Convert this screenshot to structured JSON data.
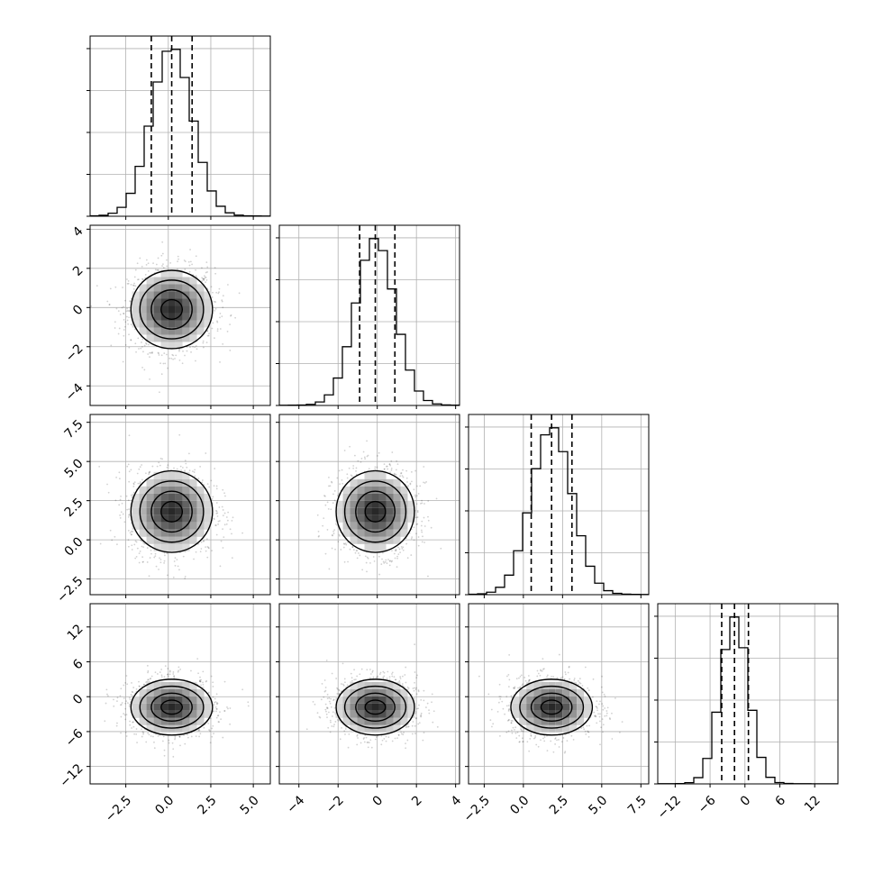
{
  "chart_data": {
    "type": "corner",
    "grid": true,
    "parameters": [
      {
        "range": [
          -4.6,
          6.0
        ],
        "ticks": [
          -2.5,
          0.0,
          2.5,
          5.0
        ],
        "tick_labels": [
          "−2.5",
          "0.0",
          "2.5",
          "5.0"
        ],
        "mean": 0.2,
        "sd": 1.2,
        "quantiles": [
          -1.0,
          0.2,
          1.4
        ]
      },
      {
        "range": [
          -5.0,
          4.2
        ],
        "ticks": [
          -4,
          -2,
          0,
          2,
          4
        ],
        "tick_labels": [
          "−4",
          "−2",
          "0",
          "2",
          "4"
        ],
        "mean": -0.1,
        "sd": 1.0,
        "quantiles": [
          -0.9,
          -0.1,
          0.9
        ]
      },
      {
        "range": [
          -3.5,
          8.0
        ],
        "ticks": [
          -2.5,
          0.0,
          2.5,
          5.0,
          7.5
        ],
        "tick_labels": [
          "−2.5",
          "0.0",
          "2.5",
          "5.0",
          "7.5"
        ],
        "mean": 1.8,
        "sd": 1.3,
        "quantiles": [
          0.5,
          1.8,
          3.1
        ]
      },
      {
        "range": [
          -15.0,
          16.0
        ],
        "ticks": [
          -12,
          -6,
          0,
          6,
          12
        ],
        "tick_labels": [
          "−12",
          "−6",
          "0",
          "6",
          "12"
        ],
        "mean": -1.8,
        "sd": 2.4,
        "quantiles": [
          -4.0,
          -1.8,
          0.6
        ]
      }
    ]
  }
}
